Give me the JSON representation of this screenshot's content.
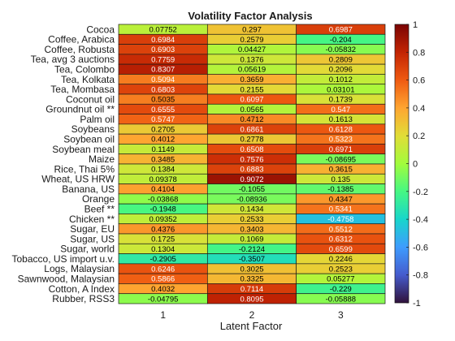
{
  "chart_data": {
    "type": "heatmap",
    "title": "Volatility Factor Analysis",
    "xlabel": "Latent Factor",
    "ylabel": "",
    "x_categories": [
      "1",
      "2",
      "3"
    ],
    "y_categories": [
      "Cocoa",
      "Coffee, Arabica",
      "Coffee, Robusta",
      "Tea, avg 3 auctions",
      "Tea, Colombo",
      "Tea, Kolkata",
      "Tea, Mombasa",
      "Coconut oil",
      "Groundnut oil **",
      "Palm oil",
      "Soybeans",
      "Soybean oil",
      "Soybean meal",
      "Maize",
      "Rice, Thai 5%",
      "Wheat, US HRW",
      "Banana, US",
      "Orange",
      "Beef **",
      "Chicken **",
      "Sugar, EU",
      "Sugar, US",
      "Sugar, world",
      "Tobacco, US import u.v.",
      "Logs, Malaysian",
      "Sawnwood, Malaysian",
      "Cotton, A Index",
      "Rubber, RSS3"
    ],
    "value_labels": [
      [
        "0.07752",
        "0.297",
        "0.6987"
      ],
      [
        "0.6984",
        "0.2579",
        "-0.204"
      ],
      [
        "0.6903",
        "0.04427",
        "-0.05832"
      ],
      [
        "0.7759",
        "0.1376",
        "0.2809"
      ],
      [
        "0.8307",
        "0.05619",
        "0.2096"
      ],
      [
        "0.5094",
        "0.3659",
        "0.1012"
      ],
      [
        "0.6803",
        "0.2155",
        "0.03101"
      ],
      [
        "0.5035",
        "0.6097",
        "0.1739"
      ],
      [
        "0.6555",
        "0.0565",
        "0.547"
      ],
      [
        "0.5747",
        "0.4712",
        "0.1613"
      ],
      [
        "0.2705",
        "0.6861",
        "0.6128"
      ],
      [
        "0.4012",
        "0.2778",
        "0.5323"
      ],
      [
        "0.1149",
        "0.6508",
        "0.6971"
      ],
      [
        "0.3485",
        "0.7576",
        "-0.08695"
      ],
      [
        "0.1384",
        "0.6883",
        "0.3615"
      ],
      [
        "0.09378",
        "0.9072",
        "0.135"
      ],
      [
        "0.4104",
        "-0.1055",
        "-0.1385"
      ],
      [
        "-0.03868",
        "-0.08936",
        "0.4347"
      ],
      [
        "-0.1948",
        "0.1434",
        "0.5341"
      ],
      [
        "0.09352",
        "0.2533",
        "-0.4758"
      ],
      [
        "0.4376",
        "0.3403",
        "0.5512"
      ],
      [
        "0.1725",
        "0.1069",
        "0.6312"
      ],
      [
        "0.1304",
        "-0.2124",
        "0.6599"
      ],
      [
        "-0.2905",
        "-0.3507",
        "0.2246"
      ],
      [
        "0.6246",
        "0.3025",
        "0.2523"
      ],
      [
        "0.5866",
        "0.3325",
        "0.05277"
      ],
      [
        "0.4032",
        "0.7114",
        "-0.229"
      ],
      [
        "-0.04795",
        "0.8095",
        "-0.05888"
      ]
    ],
    "colorbar": {
      "range": [
        -1,
        1
      ],
      "ticks": [
        "-1",
        "-0.8",
        "-0.6",
        "-0.4",
        "-0.2",
        "0",
        "0.2",
        "0.4",
        "0.6",
        "0.8",
        "1"
      ]
    },
    "colormap": "turbo",
    "grid": true,
    "legend": "none"
  }
}
